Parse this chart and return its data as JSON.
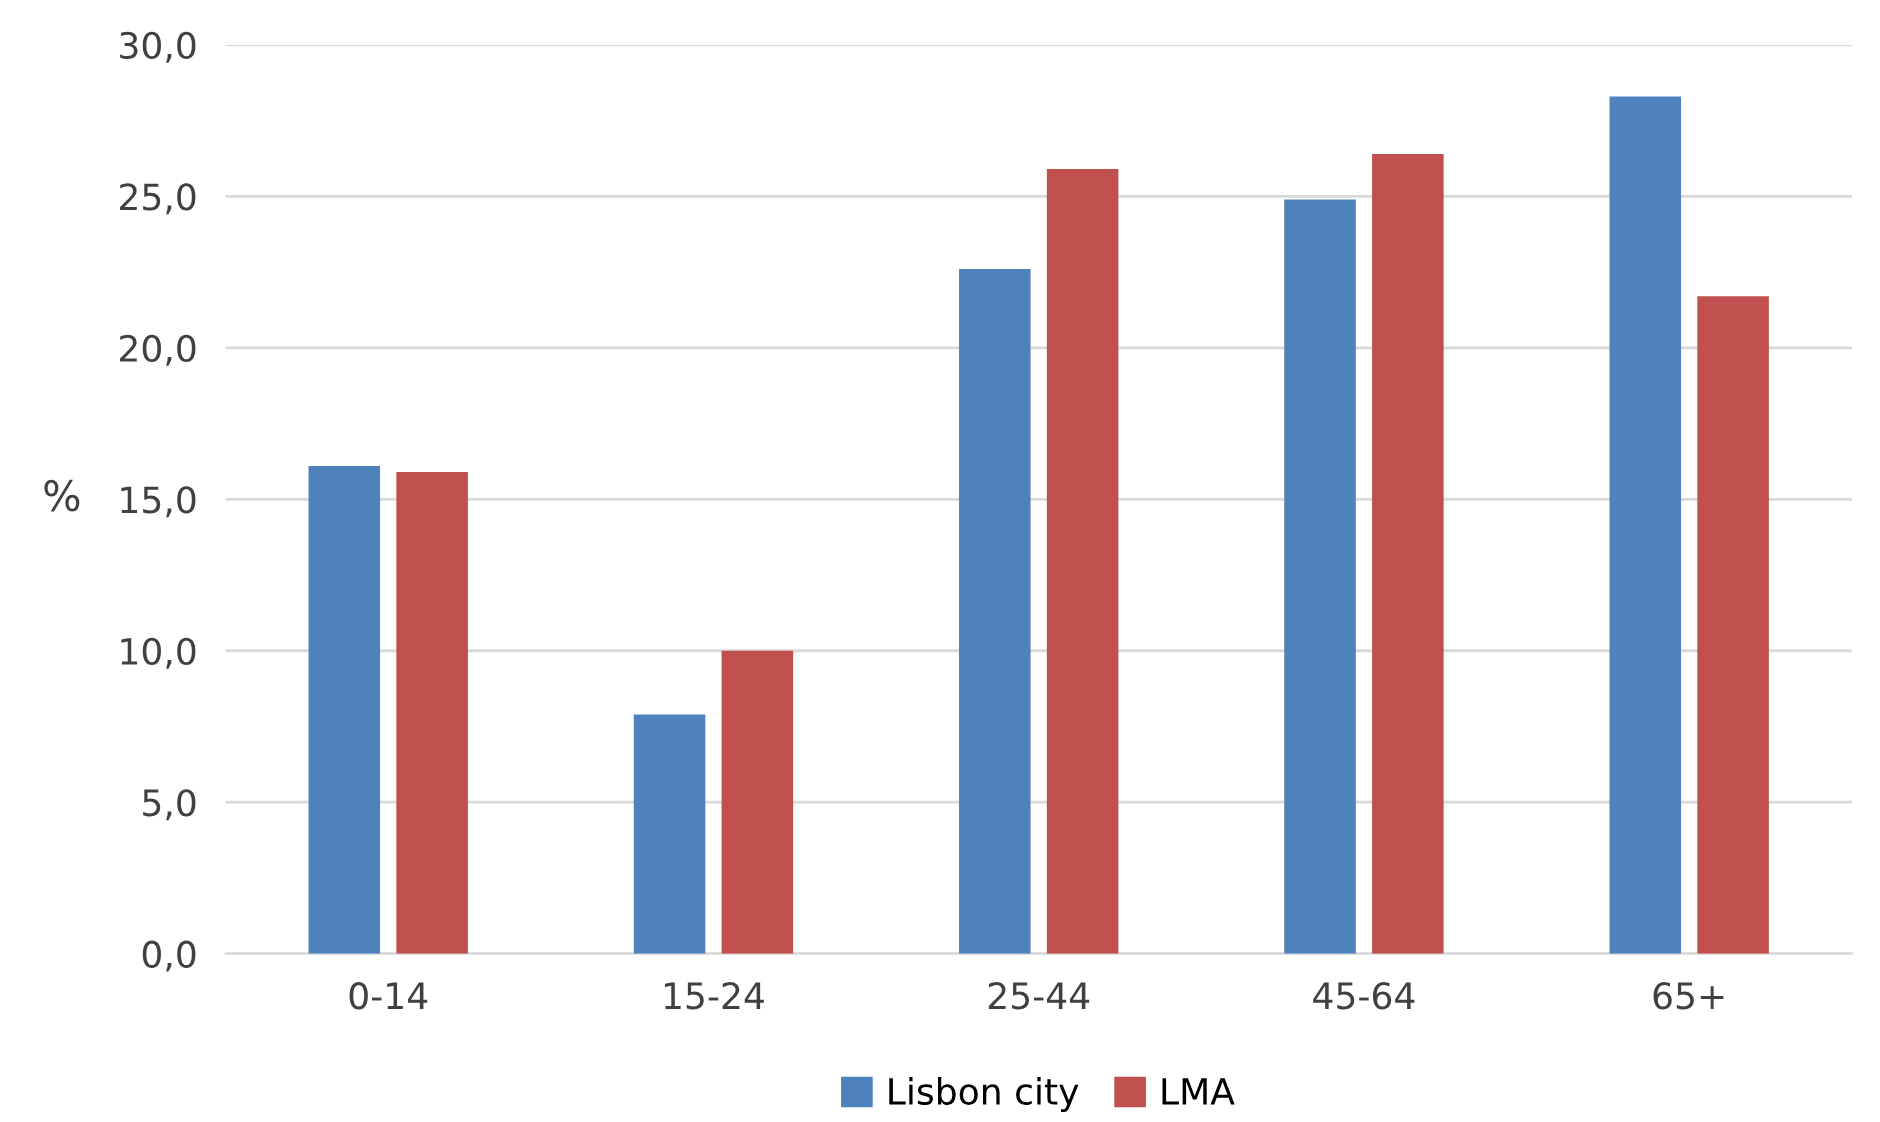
{
  "chart_data": {
    "type": "bar",
    "ylabel": "%",
    "categories": [
      "0-14",
      "15-24",
      "25-44",
      "45-64",
      "65+"
    ],
    "series": [
      {
        "name": "Lisbon city",
        "color": "#4f81bd",
        "values": [
          16.1,
          7.9,
          22.6,
          24.9,
          28.3
        ]
      },
      {
        "name": "LMA",
        "color": "#c0504d",
        "values": [
          15.9,
          10.0,
          25.9,
          26.4,
          21.7
        ]
      }
    ],
    "ylim": [
      0,
      30
    ],
    "yticks": [
      {
        "value": 0,
        "label": "0,0"
      },
      {
        "value": 5,
        "label": "5,0"
      },
      {
        "value": 10,
        "label": "10,0"
      },
      {
        "value": 15,
        "label": "15,0"
      },
      {
        "value": 20,
        "label": "20,0"
      },
      {
        "value": 25,
        "label": "25,0"
      },
      {
        "value": 30,
        "label": "30,0"
      }
    ],
    "grid": "y",
    "legend": "bottom"
  }
}
